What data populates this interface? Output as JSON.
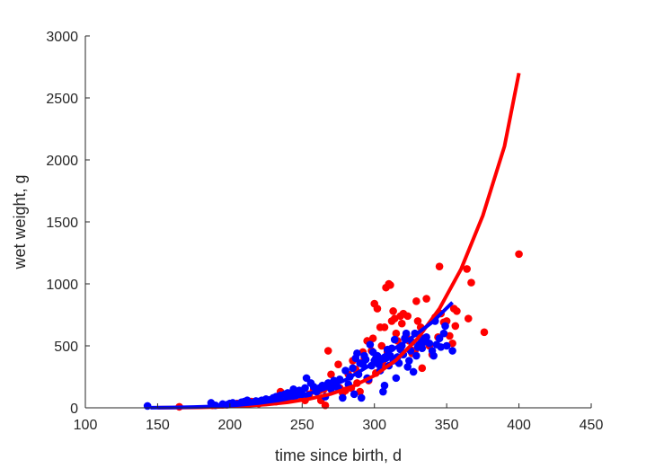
{
  "chart_data": {
    "type": "scatter",
    "title": "",
    "xlabel": "time since birth, d",
    "ylabel": "wet weight, g",
    "xlim": [
      100,
      450
    ],
    "ylim": [
      0,
      3000
    ],
    "xticks": [
      100,
      150,
      200,
      250,
      300,
      350,
      400,
      450
    ],
    "yticks": [
      0,
      500,
      1000,
      1500,
      2000,
      2500,
      3000
    ],
    "grid": false,
    "legend": "none",
    "colors": {
      "red": "#ff0000",
      "blue": "#0000ff",
      "axis": "#262626"
    },
    "series": [
      {
        "kind": "points",
        "color": "#ff0000",
        "points": [
          [
            165,
            8
          ],
          [
            188,
            20
          ],
          [
            195,
            25
          ],
          [
            200,
            30
          ],
          [
            205,
            35
          ],
          [
            210,
            40
          ],
          [
            215,
            50
          ],
          [
            220,
            35
          ],
          [
            225,
            45
          ],
          [
            228,
            60
          ],
          [
            232,
            50
          ],
          [
            235,
            130
          ],
          [
            240,
            70
          ],
          [
            243,
            90
          ],
          [
            245,
            100
          ],
          [
            248,
            120
          ],
          [
            250,
            80
          ],
          [
            252,
            60
          ],
          [
            255,
            110
          ],
          [
            258,
            150
          ],
          [
            260,
            130
          ],
          [
            262,
            140
          ],
          [
            263,
            60
          ],
          [
            265,
            150
          ],
          [
            266,
            20
          ],
          [
            268,
            460
          ],
          [
            270,
            270
          ],
          [
            272,
            200
          ],
          [
            273,
            180
          ],
          [
            275,
            350
          ],
          [
            276,
            160
          ],
          [
            278,
            120
          ],
          [
            280,
            140
          ],
          [
            282,
            270
          ],
          [
            284,
            160
          ],
          [
            285,
            380
          ],
          [
            287,
            310
          ],
          [
            288,
            200
          ],
          [
            290,
            130
          ],
          [
            292,
            450
          ],
          [
            293,
            400
          ],
          [
            295,
            540
          ],
          [
            296,
            220
          ],
          [
            298,
            460
          ],
          [
            299,
            560
          ],
          [
            300,
            840
          ],
          [
            301,
            280
          ],
          [
            302,
            800
          ],
          [
            304,
            650
          ],
          [
            305,
            500
          ],
          [
            306,
            350
          ],
          [
            307,
            650
          ],
          [
            308,
            970
          ],
          [
            309,
            450
          ],
          [
            310,
            1000
          ],
          [
            311,
            990
          ],
          [
            312,
            700
          ],
          [
            313,
            780
          ],
          [
            314,
            720
          ],
          [
            315,
            600
          ],
          [
            316,
            540
          ],
          [
            318,
            740
          ],
          [
            319,
            680
          ],
          [
            320,
            760
          ],
          [
            322,
            580
          ],
          [
            323,
            740
          ],
          [
            324,
            540
          ],
          [
            325,
            470
          ],
          [
            326,
            440
          ],
          [
            328,
            460
          ],
          [
            329,
            860
          ],
          [
            330,
            700
          ],
          [
            332,
            650
          ],
          [
            333,
            320
          ],
          [
            334,
            560
          ],
          [
            336,
            880
          ],
          [
            338,
            500
          ],
          [
            340,
            430
          ],
          [
            342,
            730
          ],
          [
            344,
            570
          ],
          [
            345,
            1140
          ],
          [
            346,
            760
          ],
          [
            348,
            690
          ],
          [
            350,
            700
          ],
          [
            352,
            580
          ],
          [
            354,
            520
          ],
          [
            355,
            800
          ],
          [
            356,
            660
          ],
          [
            357,
            780
          ],
          [
            364,
            1120
          ],
          [
            365,
            720
          ],
          [
            367,
            1010
          ],
          [
            376,
            610
          ],
          [
            400,
            1240
          ]
        ]
      },
      {
        "kind": "points",
        "color": "#0000ff",
        "points": [
          [
            143,
            15
          ],
          [
            187,
            40
          ],
          [
            190,
            20
          ],
          [
            195,
            30
          ],
          [
            198,
            25
          ],
          [
            200,
            35
          ],
          [
            202,
            40
          ],
          [
            205,
            30
          ],
          [
            208,
            45
          ],
          [
            210,
            50
          ],
          [
            212,
            60
          ],
          [
            215,
            40
          ],
          [
            218,
            55
          ],
          [
            220,
            50
          ],
          [
            222,
            60
          ],
          [
            225,
            70
          ],
          [
            228,
            65
          ],
          [
            230,
            80
          ],
          [
            232,
            90
          ],
          [
            235,
            100
          ],
          [
            238,
            110
          ],
          [
            240,
            120
          ],
          [
            242,
            100
          ],
          [
            244,
            150
          ],
          [
            245,
            90
          ],
          [
            246,
            130
          ],
          [
            248,
            140
          ],
          [
            250,
            110
          ],
          [
            252,
            160
          ],
          [
            253,
            240
          ],
          [
            254,
            100
          ],
          [
            256,
            200
          ],
          [
            258,
            170
          ],
          [
            260,
            130
          ],
          [
            262,
            160
          ],
          [
            264,
            180
          ],
          [
            266,
            90
          ],
          [
            268,
            200
          ],
          [
            270,
            150
          ],
          [
            272,
            220
          ],
          [
            274,
            170
          ],
          [
            275,
            160
          ],
          [
            276,
            230
          ],
          [
            278,
            80
          ],
          [
            280,
            300
          ],
          [
            282,
            190
          ],
          [
            283,
            250
          ],
          [
            285,
            320
          ],
          [
            286,
            110
          ],
          [
            287,
            400
          ],
          [
            288,
            440
          ],
          [
            289,
            270
          ],
          [
            290,
            360
          ],
          [
            291,
            80
          ],
          [
            292,
            350
          ],
          [
            293,
            420
          ],
          [
            294,
            390
          ],
          [
            295,
            240
          ],
          [
            296,
            230
          ],
          [
            297,
            510
          ],
          [
            298,
            340
          ],
          [
            299,
            450
          ],
          [
            300,
            380
          ],
          [
            301,
            400
          ],
          [
            302,
            420
          ],
          [
            303,
            350
          ],
          [
            304,
            300
          ],
          [
            305,
            390
          ],
          [
            306,
            130
          ],
          [
            307,
            180
          ],
          [
            308,
            400
          ],
          [
            309,
            470
          ],
          [
            310,
            340
          ],
          [
            311,
            420
          ],
          [
            312,
            480
          ],
          [
            313,
            380
          ],
          [
            314,
            550
          ],
          [
            315,
            240
          ],
          [
            316,
            410
          ],
          [
            317,
            360
          ],
          [
            318,
            470
          ],
          [
            319,
            500
          ],
          [
            320,
            430
          ],
          [
            321,
            560
          ],
          [
            322,
            600
          ],
          [
            323,
            330
          ],
          [
            324,
            380
          ],
          [
            325,
            460
          ],
          [
            326,
            530
          ],
          [
            327,
            290
          ],
          [
            328,
            600
          ],
          [
            329,
            420
          ],
          [
            330,
            490
          ],
          [
            331,
            510
          ],
          [
            332,
            560
          ],
          [
            333,
            480
          ],
          [
            334,
            530
          ],
          [
            336,
            570
          ],
          [
            338,
            520
          ],
          [
            340,
            460
          ],
          [
            341,
            420
          ],
          [
            342,
            700
          ],
          [
            343,
            510
          ],
          [
            345,
            560
          ],
          [
            346,
            490
          ],
          [
            348,
            600
          ],
          [
            349,
            660
          ],
          [
            350,
            500
          ],
          [
            354,
            460
          ]
        ]
      },
      {
        "kind": "line",
        "color": "#ff0000",
        "x": [
          150,
          165,
          180,
          195,
          210,
          225,
          240,
          255,
          270,
          285,
          300,
          315,
          330,
          345,
          360,
          375,
          390,
          400
        ],
        "y": [
          1,
          2,
          4,
          8,
          15,
          26,
          44,
          72,
          112,
          173,
          260,
          385,
          560,
          800,
          1120,
          1550,
          2110,
          2700
        ]
      },
      {
        "kind": "line",
        "color": "#0000ff",
        "x": [
          145,
          160,
          175,
          190,
          205,
          220,
          235,
          250,
          265,
          280,
          295,
          310,
          325,
          340,
          354
        ],
        "y": [
          1,
          3,
          6,
          12,
          22,
          38,
          62,
          98,
          150,
          225,
          330,
          450,
          560,
          690,
          850
        ]
      }
    ]
  }
}
